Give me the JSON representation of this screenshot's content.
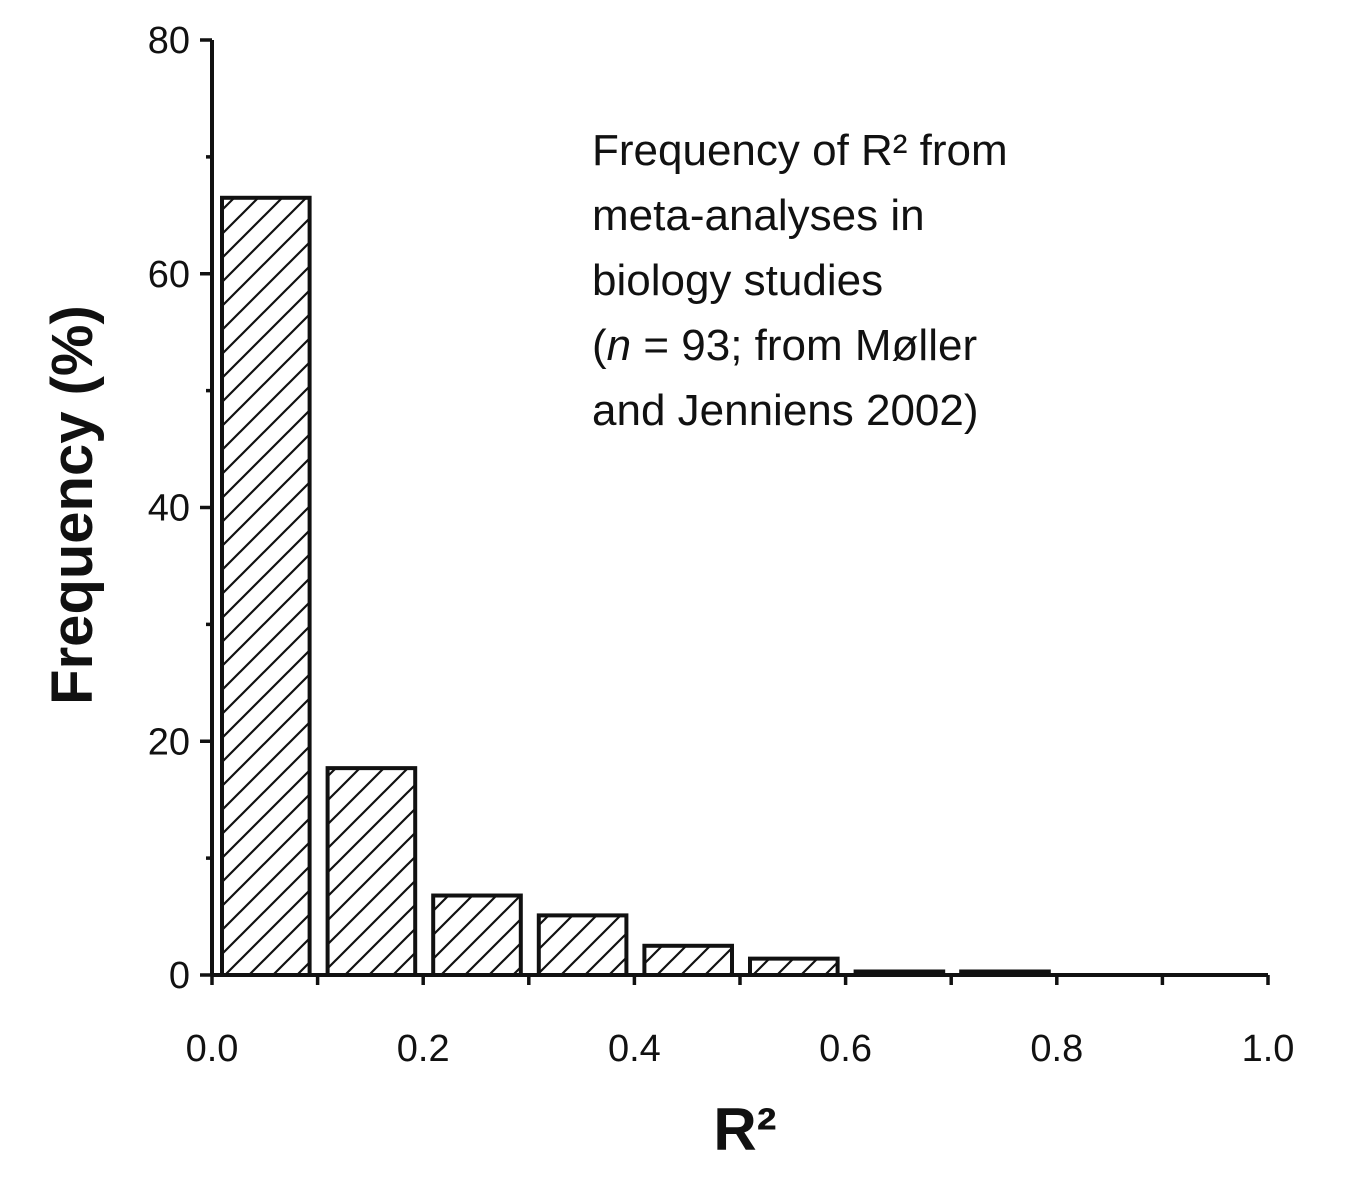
{
  "chart_data": {
    "type": "bar",
    "title": "",
    "xlabel": "R²",
    "ylabel": "Frequency (%)",
    "xlim": [
      0.0,
      1.0
    ],
    "ylim": [
      0,
      80
    ],
    "x_ticks": [
      0.0,
      0.2,
      0.4,
      0.6,
      0.8,
      1.0
    ],
    "x_tick_labels": [
      "0.0",
      "0.2",
      "0.4",
      "0.6",
      "0.8",
      "1.0"
    ],
    "y_ticks": [
      0,
      20,
      40,
      60,
      80
    ],
    "y_tick_labels": [
      "0",
      "20",
      "40",
      "60",
      "80"
    ],
    "bin_width": 0.1,
    "bins": [
      {
        "start": 0.0,
        "end": 0.1,
        "value": 66.5
      },
      {
        "start": 0.1,
        "end": 0.2,
        "value": 17.7
      },
      {
        "start": 0.2,
        "end": 0.3,
        "value": 6.8
      },
      {
        "start": 0.3,
        "end": 0.4,
        "value": 5.1
      },
      {
        "start": 0.4,
        "end": 0.5,
        "value": 2.5
      },
      {
        "start": 0.5,
        "end": 0.6,
        "value": 1.4
      },
      {
        "start": 0.6,
        "end": 0.7,
        "value": 0.3
      },
      {
        "start": 0.7,
        "end": 0.8,
        "value": 0.3
      },
      {
        "start": 0.8,
        "end": 0.9,
        "value": 0
      },
      {
        "start": 0.9,
        "end": 1.0,
        "value": 0
      }
    ],
    "fill": "hatched",
    "grid": false,
    "annotation": {
      "lines": [
        {
          "text": "Frequency of R² from"
        },
        {
          "text": "meta-analyses in"
        },
        {
          "text": "biology studies"
        },
        {
          "prefix": "(",
          "italic": "n",
          "suffix": " = 93; from Møller"
        },
        {
          "text": "and Jenniens 2002)"
        }
      ]
    },
    "colors": {
      "ink": "#111111",
      "background": "#ffffff"
    }
  }
}
